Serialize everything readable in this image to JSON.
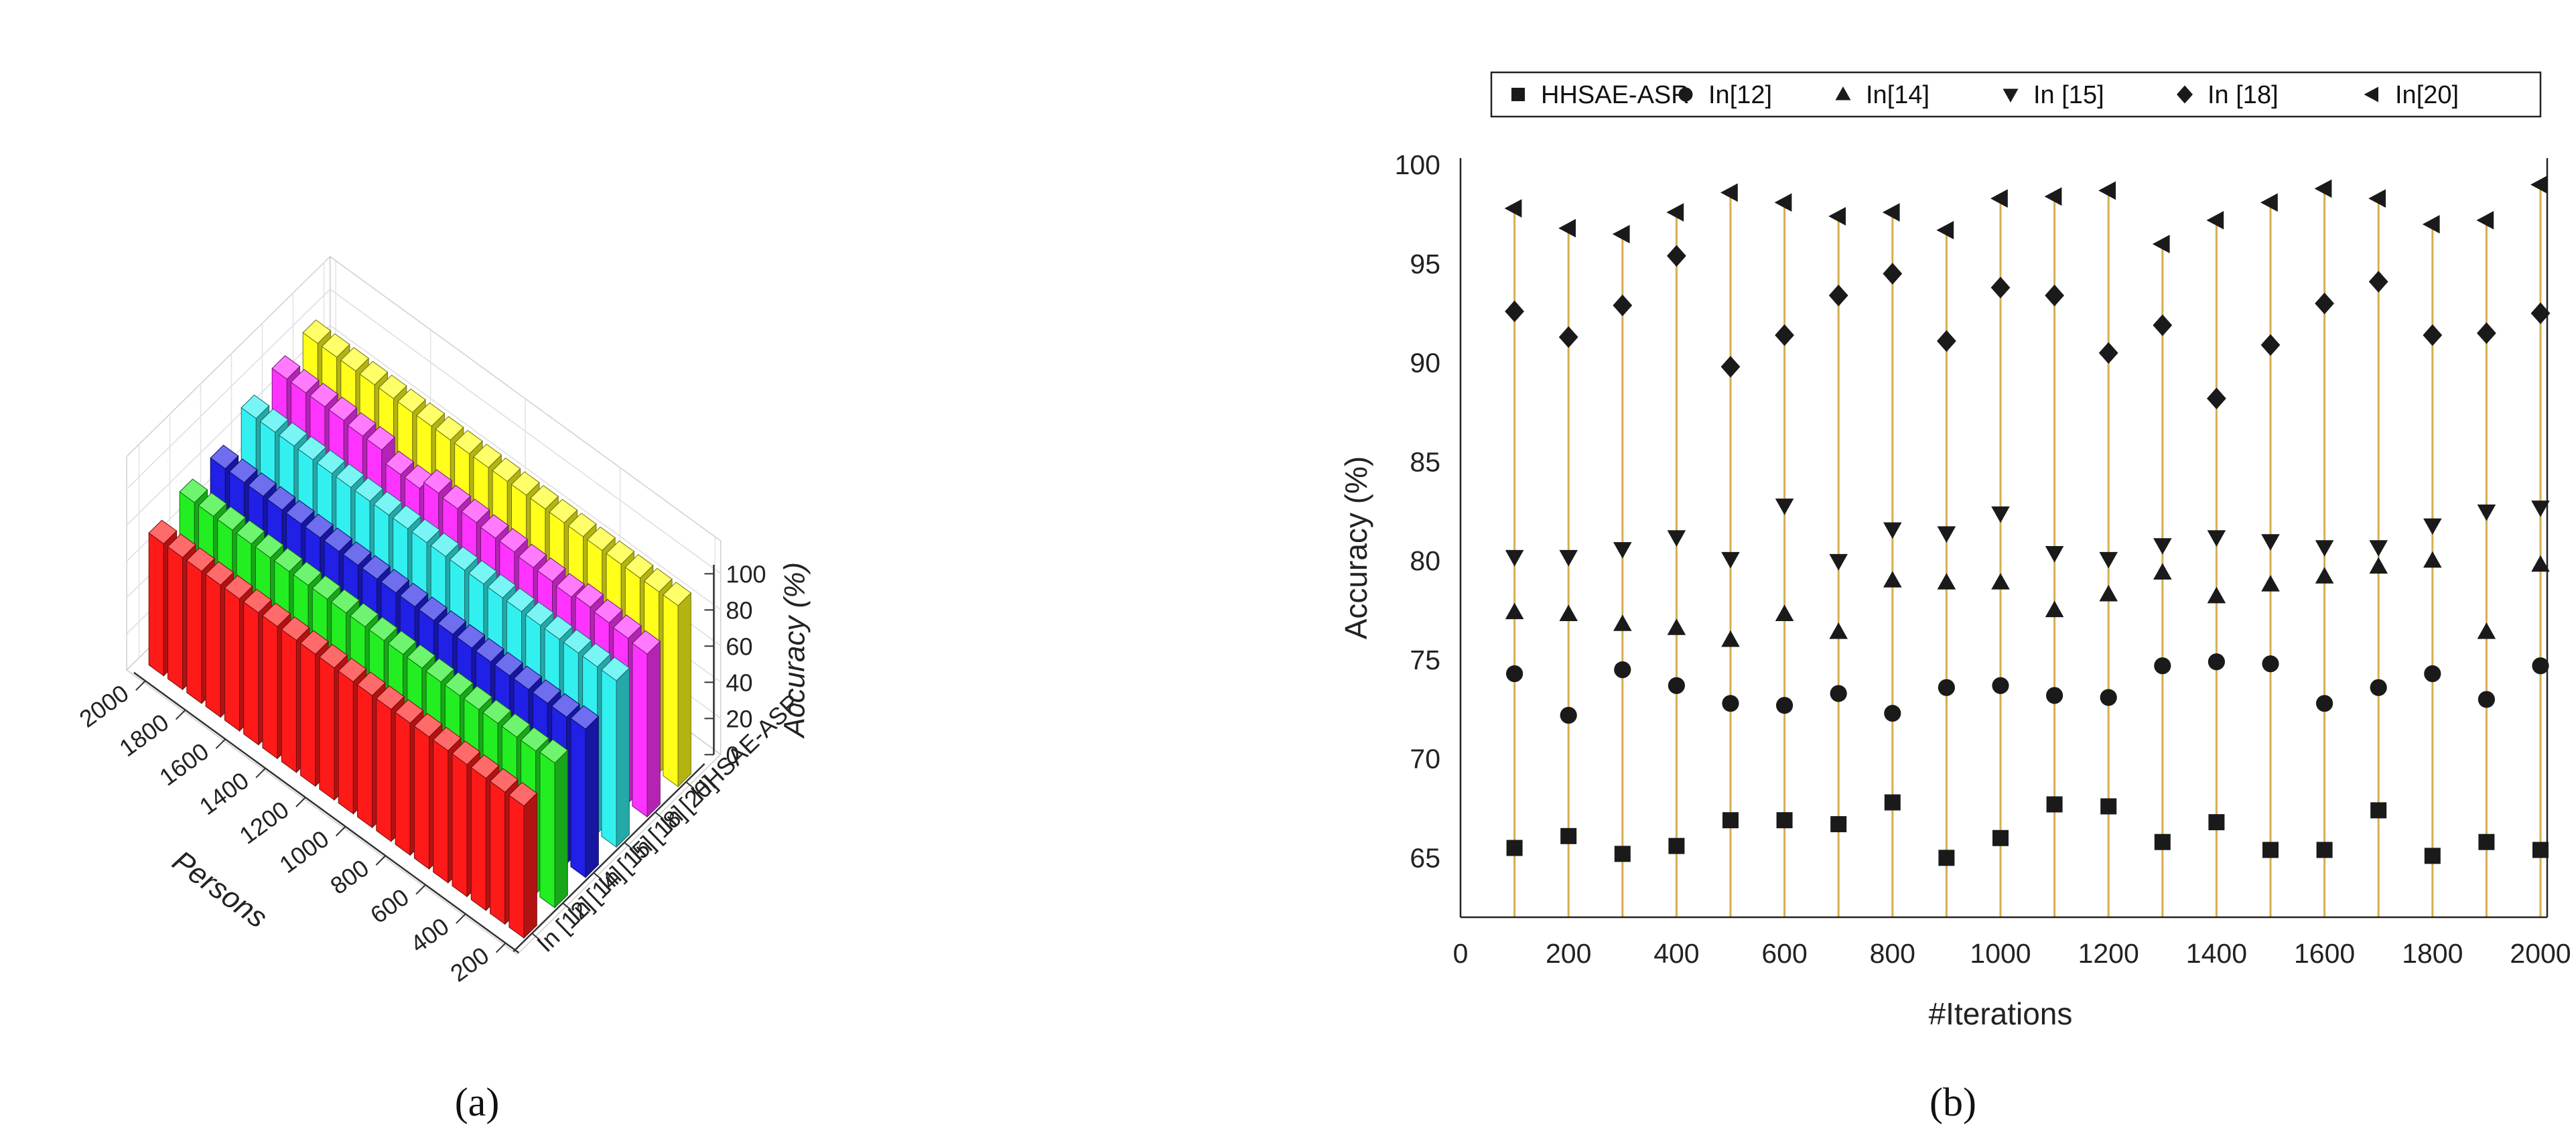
{
  "captions": {
    "a": "(a)",
    "b": "(b)"
  },
  "chart_data": [
    {
      "type": "bar",
      "subtype": "3d-bar",
      "panel": "a",
      "title": "",
      "xlabel": "Persons",
      "ylabel": "Accuracy (%)",
      "zlabel": "",
      "persons": [
        2000,
        1800,
        1600,
        1400,
        1200,
        1000,
        800,
        600,
        400,
        200
      ],
      "x_ticks": [
        "2000",
        "1800",
        "1600",
        "1400",
        "1200",
        "1000",
        "800",
        "600",
        "400",
        "200"
      ],
      "bars_per_series": 20,
      "ylim": [
        0,
        100
      ],
      "y_ticks": [
        "0",
        "20",
        "40",
        "60",
        "80",
        "100"
      ],
      "series": [
        {
          "name": "In [12]",
          "color": "#ff1a1a",
          "values": [
            73,
            73,
            73,
            73,
            73,
            73,
            73,
            73,
            73,
            73,
            73,
            73,
            73,
            73,
            73,
            73,
            73,
            73,
            73,
            73
          ]
        },
        {
          "name": "In [14]",
          "color": "#22ee22",
          "values": [
            79,
            79,
            79,
            79,
            79,
            79,
            79,
            79,
            79,
            79,
            79,
            79,
            79,
            79,
            79,
            79,
            79,
            79,
            79,
            80
          ]
        },
        {
          "name": "In [15]",
          "color": "#2020e6",
          "values": [
            81,
            81,
            81,
            81,
            81,
            81,
            81,
            81,
            81,
            81,
            81,
            81,
            81,
            81,
            81,
            81,
            81,
            81,
            81,
            82
          ]
        },
        {
          "name": "In [18]",
          "color": "#33f0f0",
          "values": [
            92,
            92,
            92,
            92,
            92,
            92,
            92,
            92,
            92,
            92,
            92,
            92,
            92,
            92,
            92,
            92,
            92,
            92,
            92,
            92
          ]
        },
        {
          "name": "In [20]",
          "color": "#ff33ff",
          "values": [
            97,
            97,
            97,
            97,
            96,
            96,
            90,
            90,
            95,
            94,
            94,
            93,
            93,
            92,
            92,
            91,
            93,
            92,
            91,
            90
          ]
        },
        {
          "name": "HHSAE-ASR",
          "color": "#ffff1a",
          "values": [
            100,
            100,
            100,
            100,
            100,
            100,
            100,
            100,
            100,
            100,
            100,
            100,
            100,
            100,
            100,
            100,
            100,
            100,
            100,
            100
          ]
        }
      ]
    },
    {
      "type": "scatter",
      "panel": "b",
      "title": "",
      "xlabel": "#Iterations",
      "ylabel": "Accuracy (%)",
      "xlim": [
        0,
        2000
      ],
      "ylim": [
        62,
        100
      ],
      "x_ticks": [
        0,
        200,
        400,
        600,
        800,
        1000,
        1200,
        1400,
        1600,
        1800,
        2000
      ],
      "y_ticks": [
        65,
        70,
        75,
        80,
        85,
        90,
        95,
        100
      ],
      "x": [
        100,
        200,
        300,
        400,
        500,
        600,
        700,
        800,
        900,
        1000,
        1100,
        1200,
        1300,
        1400,
        1500,
        1600,
        1700,
        1800,
        1900,
        2000
      ],
      "series": [
        {
          "name": "HHSAE-ASR",
          "marker": "square",
          "values": [
            65.5,
            66.1,
            65.2,
            65.6,
            66.9,
            66.9,
            66.7,
            67.8,
            65.0,
            66.0,
            67.7,
            67.6,
            65.8,
            66.8,
            65.4,
            65.4,
            67.4,
            65.1,
            65.8,
            65.4
          ]
        },
        {
          "name": "In[12]",
          "marker": "circle",
          "values": [
            74.3,
            72.2,
            74.5,
            73.7,
            72.8,
            72.7,
            73.3,
            72.3,
            73.6,
            73.7,
            73.2,
            73.1,
            74.7,
            74.9,
            74.8,
            72.8,
            73.6,
            74.3,
            73.0,
            74.7
          ]
        },
        {
          "name": "In[14]",
          "marker": "triangle-up",
          "values": [
            77.4,
            77.3,
            76.8,
            76.6,
            76.0,
            77.3,
            76.4,
            79.0,
            78.9,
            78.9,
            77.5,
            78.3,
            79.4,
            78.2,
            78.8,
            79.2,
            79.7,
            80.0,
            76.4,
            79.8
          ]
        },
        {
          "name": "In [15]",
          "marker": "triangle-down",
          "values": [
            80.2,
            80.2,
            80.6,
            81.2,
            80.1,
            82.8,
            80.0,
            81.6,
            81.4,
            82.4,
            80.4,
            80.1,
            80.8,
            81.2,
            81.0,
            80.7,
            80.7,
            81.8,
            82.5,
            82.7
          ]
        },
        {
          "name": "In [18]",
          "marker": "diamond",
          "values": [
            92.6,
            91.3,
            92.9,
            95.4,
            89.8,
            91.4,
            93.4,
            94.5,
            91.1,
            93.8,
            93.4,
            90.5,
            91.9,
            88.2,
            90.9,
            93.0,
            94.1,
            91.4,
            91.5,
            92.5
          ]
        },
        {
          "name": "In[20]",
          "marker": "triangle-left",
          "values": [
            97.8,
            96.8,
            96.5,
            97.6,
            98.6,
            98.1,
            97.4,
            97.6,
            96.7,
            98.3,
            98.4,
            98.7,
            96.0,
            97.2,
            98.1,
            98.8,
            98.3,
            97.0,
            97.2,
            99.0
          ]
        }
      ],
      "stem_color": "#d7ad4f"
    }
  ]
}
